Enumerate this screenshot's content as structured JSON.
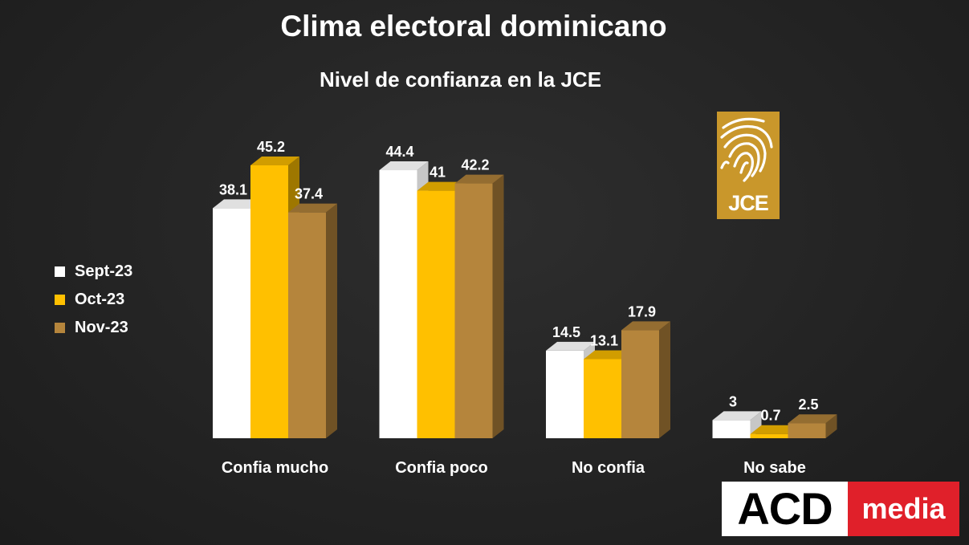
{
  "chart_data": {
    "type": "bar",
    "title": "Clima electoral dominicano",
    "subtitle": "Nivel de confianza en la JCE",
    "categories": [
      "Confia mucho",
      "Confia poco",
      "No confia",
      "No sabe"
    ],
    "series": [
      {
        "name": "Sept-23",
        "color": "#ffffff",
        "values": [
          38.1,
          44.4,
          14.5,
          3
        ]
      },
      {
        "name": "Oct-23",
        "color": "#ffc000",
        "values": [
          45.2,
          41,
          13.1,
          0.7
        ]
      },
      {
        "name": "Nov-23",
        "color": "#b5853c",
        "values": [
          37.4,
          42.2,
          17.9,
          2.5
        ]
      }
    ],
    "ylim": [
      0,
      45.2
    ],
    "grid": false,
    "legend_position": "left",
    "style": "3d"
  },
  "logos": {
    "jce": {
      "text": "JCE",
      "color": "#c9972b"
    },
    "brand": {
      "left_text": "ACD",
      "right_text": "media",
      "right_color": "#e0202a"
    }
  }
}
